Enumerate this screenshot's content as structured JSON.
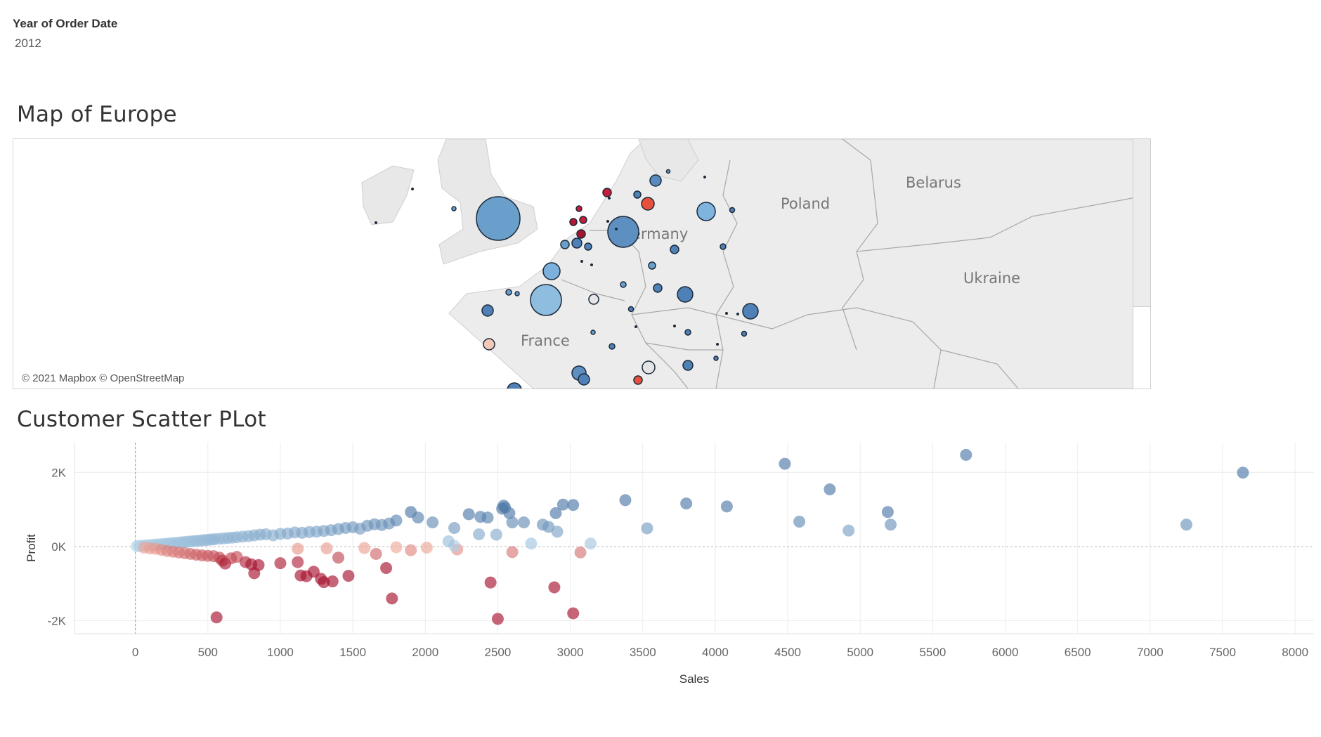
{
  "filter": {
    "title": "Year of Order Date",
    "value": "2012"
  },
  "map": {
    "title": "Map of Europe",
    "attribution": "© 2021 Mapbox © OpenStreetMap",
    "labels": {
      "germany": "ermany",
      "france": "France",
      "poland": "Poland",
      "belarus": "Belarus",
      "ukraine": "Ukraine"
    }
  },
  "scatter": {
    "title": "Customer Scatter PLot",
    "colors": {
      "profit_high": "#4e79a7",
      "profit_low": "#b2d3ea",
      "loss_low": "#f7b7a3",
      "loss_high": "#a6122e"
    }
  },
  "chart_data": {
    "type": "scatter",
    "title": "Customer Scatter PLot",
    "xlabel": "Sales",
    "ylabel": "Profit",
    "xlim": [
      -420,
      8130
    ],
    "ylim": [
      -2350,
      2800
    ],
    "x_ticks": [
      0,
      500,
      1000,
      1500,
      2000,
      2500,
      3000,
      3500,
      4000,
      4500,
      5000,
      5500,
      6000,
      6500,
      7000,
      7500,
      8000
    ],
    "x_tick_labels": [
      "0",
      "500",
      "1000",
      "1500",
      "2000",
      "2500",
      "3000",
      "3500",
      "4000",
      "4500",
      "5000",
      "5500",
      "6000",
      "6500",
      "7000",
      "7500",
      "8000"
    ],
    "y_ticks": [
      2000,
      0,
      -2000
    ],
    "y_tick_labels": [
      "2K",
      "0K",
      "-2K"
    ],
    "grid": true,
    "points": [
      {
        "x": 10,
        "y": 10
      },
      {
        "x": 30,
        "y": 15
      },
      {
        "x": 50,
        "y": 20
      },
      {
        "x": 70,
        "y": 30
      },
      {
        "x": 90,
        "y": 35
      },
      {
        "x": 110,
        "y": 40
      },
      {
        "x": 130,
        "y": 45
      },
      {
        "x": 150,
        "y": 55
      },
      {
        "x": 170,
        "y": 60
      },
      {
        "x": 190,
        "y": 65
      },
      {
        "x": 210,
        "y": 75
      },
      {
        "x": 230,
        "y": 80
      },
      {
        "x": 250,
        "y": 90
      },
      {
        "x": 270,
        "y": 95
      },
      {
        "x": 290,
        "y": 100
      },
      {
        "x": 310,
        "y": 110
      },
      {
        "x": 330,
        "y": 115
      },
      {
        "x": 350,
        "y": 125
      },
      {
        "x": 370,
        "y": 130
      },
      {
        "x": 390,
        "y": 140
      },
      {
        "x": 410,
        "y": 150
      },
      {
        "x": 430,
        "y": 155
      },
      {
        "x": 450,
        "y": 160
      },
      {
        "x": 470,
        "y": 170
      },
      {
        "x": 490,
        "y": 175
      },
      {
        "x": 510,
        "y": 185
      },
      {
        "x": 530,
        "y": 190
      },
      {
        "x": 550,
        "y": 200
      },
      {
        "x": 580,
        "y": 210
      },
      {
        "x": 610,
        "y": 220
      },
      {
        "x": 640,
        "y": 230
      },
      {
        "x": 670,
        "y": 240
      },
      {
        "x": 700,
        "y": 250
      },
      {
        "x": 740,
        "y": 265
      },
      {
        "x": 780,
        "y": 280
      },
      {
        "x": 820,
        "y": 300
      },
      {
        "x": 860,
        "y": 320
      },
      {
        "x": 900,
        "y": 330
      },
      {
        "x": 950,
        "y": 300
      },
      {
        "x": 1000,
        "y": 340
      },
      {
        "x": 1050,
        "y": 350
      },
      {
        "x": 1100,
        "y": 380
      },
      {
        "x": 1150,
        "y": 370
      },
      {
        "x": 1200,
        "y": 390
      },
      {
        "x": 1250,
        "y": 400
      },
      {
        "x": 1300,
        "y": 420
      },
      {
        "x": 1350,
        "y": 440
      },
      {
        "x": 1400,
        "y": 470
      },
      {
        "x": 1450,
        "y": 500
      },
      {
        "x": 1500,
        "y": 520
      },
      {
        "x": 1550,
        "y": 480
      },
      {
        "x": 1600,
        "y": 560
      },
      {
        "x": 1650,
        "y": 600
      },
      {
        "x": 1700,
        "y": 580
      },
      {
        "x": 1750,
        "y": 620
      },
      {
        "x": 1800,
        "y": 700
      },
      {
        "x": 1900,
        "y": 930
      },
      {
        "x": 1950,
        "y": 780
      },
      {
        "x": 2050,
        "y": 650
      },
      {
        "x": 2300,
        "y": 870
      },
      {
        "x": 2380,
        "y": 800
      },
      {
        "x": 2430,
        "y": 780
      },
      {
        "x": 2530,
        "y": 1020
      },
      {
        "x": 2540,
        "y": 1100
      },
      {
        "x": 2550,
        "y": 1050
      },
      {
        "x": 2580,
        "y": 900
      },
      {
        "x": 2600,
        "y": 650
      },
      {
        "x": 2900,
        "y": 900
      },
      {
        "x": 2950,
        "y": 1130
      },
      {
        "x": 3020,
        "y": 1120
      },
      {
        "x": 3380,
        "y": 1250
      },
      {
        "x": 3800,
        "y": 1160
      },
      {
        "x": 4080,
        "y": 1080
      },
      {
        "x": 4480,
        "y": 2230
      },
      {
        "x": 4790,
        "y": 1540
      },
      {
        "x": 5730,
        "y": 2470
      },
      {
        "x": 7640,
        "y": 1990
      },
      {
        "x": 60,
        "y": -30
      },
      {
        "x": 100,
        "y": -50
      },
      {
        "x": 140,
        "y": -60
      },
      {
        "x": 180,
        "y": -90
      },
      {
        "x": 220,
        "y": -120
      },
      {
        "x": 260,
        "y": -140
      },
      {
        "x": 300,
        "y": -160
      },
      {
        "x": 340,
        "y": -180
      },
      {
        "x": 380,
        "y": -200
      },
      {
        "x": 420,
        "y": -220
      },
      {
        "x": 460,
        "y": -240
      },
      {
        "x": 500,
        "y": -250
      },
      {
        "x": 540,
        "y": -260
      },
      {
        "x": 580,
        "y": -300
      },
      {
        "x": 600,
        "y": -380
      },
      {
        "x": 620,
        "y": -460
      },
      {
        "x": 660,
        "y": -320
      },
      {
        "x": 700,
        "y": -280
      },
      {
        "x": 760,
        "y": -420
      },
      {
        "x": 800,
        "y": -480
      },
      {
        "x": 820,
        "y": -720
      },
      {
        "x": 850,
        "y": -500
      },
      {
        "x": 1000,
        "y": -450
      },
      {
        "x": 1120,
        "y": -420
      },
      {
        "x": 1140,
        "y": -780
      },
      {
        "x": 1180,
        "y": -800
      },
      {
        "x": 1230,
        "y": -680
      },
      {
        "x": 1280,
        "y": -870
      },
      {
        "x": 1300,
        "y": -960
      },
      {
        "x": 1360,
        "y": -940
      },
      {
        "x": 1470,
        "y": -790
      },
      {
        "x": 1730,
        "y": -580
      },
      {
        "x": 1770,
        "y": -1400
      },
      {
        "x": 2450,
        "y": -970
      },
      {
        "x": 2890,
        "y": -1100
      },
      {
        "x": 3020,
        "y": -1800
      },
      {
        "x": 560,
        "y": -1910
      },
      {
        "x": 2500,
        "y": -1950
      },
      {
        "x": 1400,
        "y": -300
      },
      {
        "x": 1660,
        "y": -200
      },
      {
        "x": 1900,
        "y": -100
      },
      {
        "x": 2220,
        "y": -80
      },
      {
        "x": 2600,
        "y": -150
      },
      {
        "x": 3070,
        "y": -160
      },
      {
        "x": 1120,
        "y": -60
      },
      {
        "x": 1320,
        "y": -50
      },
      {
        "x": 1580,
        "y": -40
      },
      {
        "x": 1800,
        "y": -20
      },
      {
        "x": 2010,
        "y": -30
      },
      {
        "x": 2200,
        "y": 20
      },
      {
        "x": 2160,
        "y": 140
      },
      {
        "x": 2370,
        "y": 330
      },
      {
        "x": 2490,
        "y": 320
      },
      {
        "x": 2730,
        "y": 80
      },
      {
        "x": 2810,
        "y": 590
      },
      {
        "x": 2850,
        "y": 530
      },
      {
        "x": 2910,
        "y": 400
      },
      {
        "x": 3140,
        "y": 80
      },
      {
        "x": 3530,
        "y": 490
      },
      {
        "x": 4580,
        "y": 670
      },
      {
        "x": 4920,
        "y": 430
      },
      {
        "x": 5190,
        "y": 930
      },
      {
        "x": 5210,
        "y": 590
      },
      {
        "x": 7250,
        "y": 590
      },
      {
        "x": 2680,
        "y": 650
      },
      {
        "x": 2200,
        "y": 500
      }
    ]
  }
}
